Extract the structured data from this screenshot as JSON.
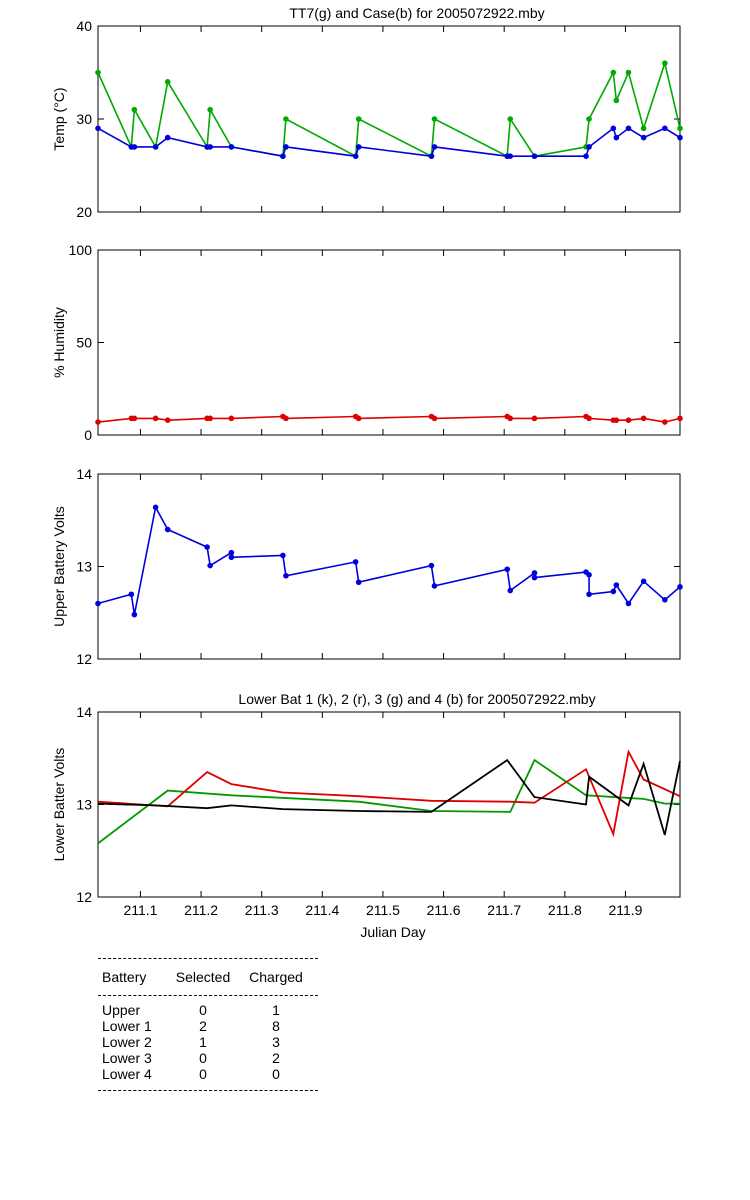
{
  "chart_data": [
    {
      "type": "line",
      "title": "TT7(g) and Case(b) for 2005072922.mby",
      "xlabel": "",
      "ylabel": "Temp  (°C)",
      "xlim": [
        211.03,
        211.99
      ],
      "ylim": [
        20,
        40
      ],
      "yticks": [
        "20",
        "30",
        "40"
      ],
      "grid": false,
      "series": [
        {
          "color": "#00aa00",
          "x": [
            211.03,
            211.085,
            211.09,
            211.125,
            211.145,
            211.21,
            211.215,
            211.25,
            211.335,
            211.34,
            211.455,
            211.46,
            211.58,
            211.585,
            211.705,
            211.71,
            211.75,
            211.835,
            211.84,
            211.88,
            211.885,
            211.905,
            211.93,
            211.965,
            211.99
          ],
          "y": [
            35,
            27,
            31,
            27,
            34,
            27,
            31,
            27,
            26,
            30,
            26,
            30,
            26,
            30,
            26,
            30,
            26,
            27,
            30,
            35,
            32,
            35,
            29,
            36,
            29
          ]
        },
        {
          "color": "#0000dd",
          "x": [
            211.03,
            211.085,
            211.09,
            211.125,
            211.145,
            211.21,
            211.215,
            211.25,
            211.335,
            211.34,
            211.455,
            211.46,
            211.58,
            211.585,
            211.705,
            211.71,
            211.75,
            211.835,
            211.84,
            211.88,
            211.885,
            211.905,
            211.93,
            211.965,
            211.99
          ],
          "y": [
            29,
            27,
            27,
            27,
            28,
            27,
            27,
            27,
            26,
            27,
            26,
            27,
            26,
            27,
            26,
            26,
            26,
            26,
            27,
            29,
            28,
            29,
            28,
            29,
            28
          ]
        }
      ]
    },
    {
      "type": "line",
      "title": "",
      "xlabel": "",
      "ylabel": "% Humidity",
      "xlim": [
        211.03,
        211.99
      ],
      "ylim": [
        0,
        100
      ],
      "yticks": [
        "0",
        "50",
        "100"
      ],
      "grid": false,
      "series": [
        {
          "color": "#dd0000",
          "x": [
            211.03,
            211.085,
            211.09,
            211.125,
            211.145,
            211.21,
            211.215,
            211.25,
            211.335,
            211.34,
            211.455,
            211.46,
            211.58,
            211.585,
            211.705,
            211.71,
            211.75,
            211.835,
            211.84,
            211.88,
            211.885,
            211.905,
            211.93,
            211.965,
            211.99
          ],
          "y": [
            7,
            9,
            9,
            9,
            8,
            9,
            9,
            9,
            10,
            9,
            10,
            9,
            10,
            9,
            10,
            9,
            9,
            10,
            9,
            8,
            8,
            8,
            9,
            7,
            9
          ]
        }
      ]
    },
    {
      "type": "line",
      "title": "",
      "xlabel": "",
      "ylabel": "Upper Battery Volts",
      "xlim": [
        211.03,
        211.99
      ],
      "ylim": [
        12,
        14
      ],
      "yticks": [
        "12",
        "13",
        "14"
      ],
      "grid": false,
      "series": [
        {
          "color": "#0000dd",
          "x": [
            211.03,
            211.085,
            211.09,
            211.125,
            211.145,
            211.21,
            211.215,
            211.25,
            211.25,
            211.335,
            211.34,
            211.455,
            211.46,
            211.58,
            211.585,
            211.705,
            211.71,
            211.75,
            211.75,
            211.835,
            211.84,
            211.84,
            211.88,
            211.885,
            211.905,
            211.93,
            211.965,
            211.99
          ],
          "y": [
            12.6,
            12.7,
            12.48,
            13.64,
            13.4,
            13.21,
            13.01,
            13.15,
            13.1,
            13.12,
            12.9,
            13.05,
            12.83,
            13.01,
            12.79,
            12.97,
            12.74,
            12.93,
            12.88,
            12.94,
            12.91,
            12.7,
            12.73,
            12.8,
            12.6,
            12.84,
            12.64,
            12.78
          ]
        }
      ]
    },
    {
      "type": "line",
      "title": "Lower Bat 1 (k), 2 (r), 3 (g) and 4 (b) for 2005072922.mby",
      "xlabel": "Julian Day",
      "ylabel": "Lower Batter Volts",
      "xlim": [
        211.03,
        211.99
      ],
      "ylim": [
        12,
        14
      ],
      "yticks": [
        "12",
        "13",
        "14"
      ],
      "xticks": [
        211.1,
        211.2,
        211.3,
        211.4,
        211.5,
        211.6,
        211.7,
        211.8,
        211.9
      ],
      "xticklabels": [
        "211.1",
        "211.2",
        "211.3",
        "211.4",
        "211.5",
        "211.6",
        "211.7",
        "211.8",
        "211.9"
      ],
      "grid": false,
      "series": [
        {
          "color": "#009900",
          "x": [
            211.03,
            211.145,
            211.25,
            211.46,
            211.58,
            211.71,
            211.75,
            211.835,
            211.93,
            211.965,
            211.99
          ],
          "y": [
            12.58,
            13.15,
            13.1,
            13.03,
            12.93,
            12.92,
            13.48,
            13.1,
            13.06,
            13.01,
            13.01
          ]
        },
        {
          "color": "#dd0000",
          "x": [
            211.03,
            211.145,
            211.21,
            211.25,
            211.335,
            211.46,
            211.58,
            211.71,
            211.75,
            211.835,
            211.88,
            211.905,
            211.93,
            211.99
          ],
          "y": [
            13.03,
            12.98,
            13.35,
            13.22,
            13.13,
            13.09,
            13.04,
            13.03,
            13.02,
            13.38,
            12.68,
            13.57,
            13.27,
            13.09
          ]
        },
        {
          "color": "#000000",
          "x": [
            211.03,
            211.125,
            211.21,
            211.25,
            211.335,
            211.46,
            211.58,
            211.705,
            211.75,
            211.835,
            211.84,
            211.905,
            211.93,
            211.965,
            211.99
          ],
          "y": [
            13.01,
            12.99,
            12.96,
            12.99,
            12.95,
            12.93,
            12.92,
            13.48,
            13.08,
            13.0,
            13.3,
            12.99,
            13.44,
            12.67,
            13.47
          ]
        }
      ]
    }
  ],
  "table": {
    "headers": [
      "Battery",
      "Selected",
      "Charged"
    ],
    "rows": [
      [
        "Upper",
        "0",
        "1"
      ],
      [
        "Lower 1",
        "2",
        "8"
      ],
      [
        "Lower 2",
        "1",
        "3"
      ],
      [
        "Lower 3",
        "0",
        "2"
      ],
      [
        "Lower 4",
        "0",
        "0"
      ]
    ]
  }
}
